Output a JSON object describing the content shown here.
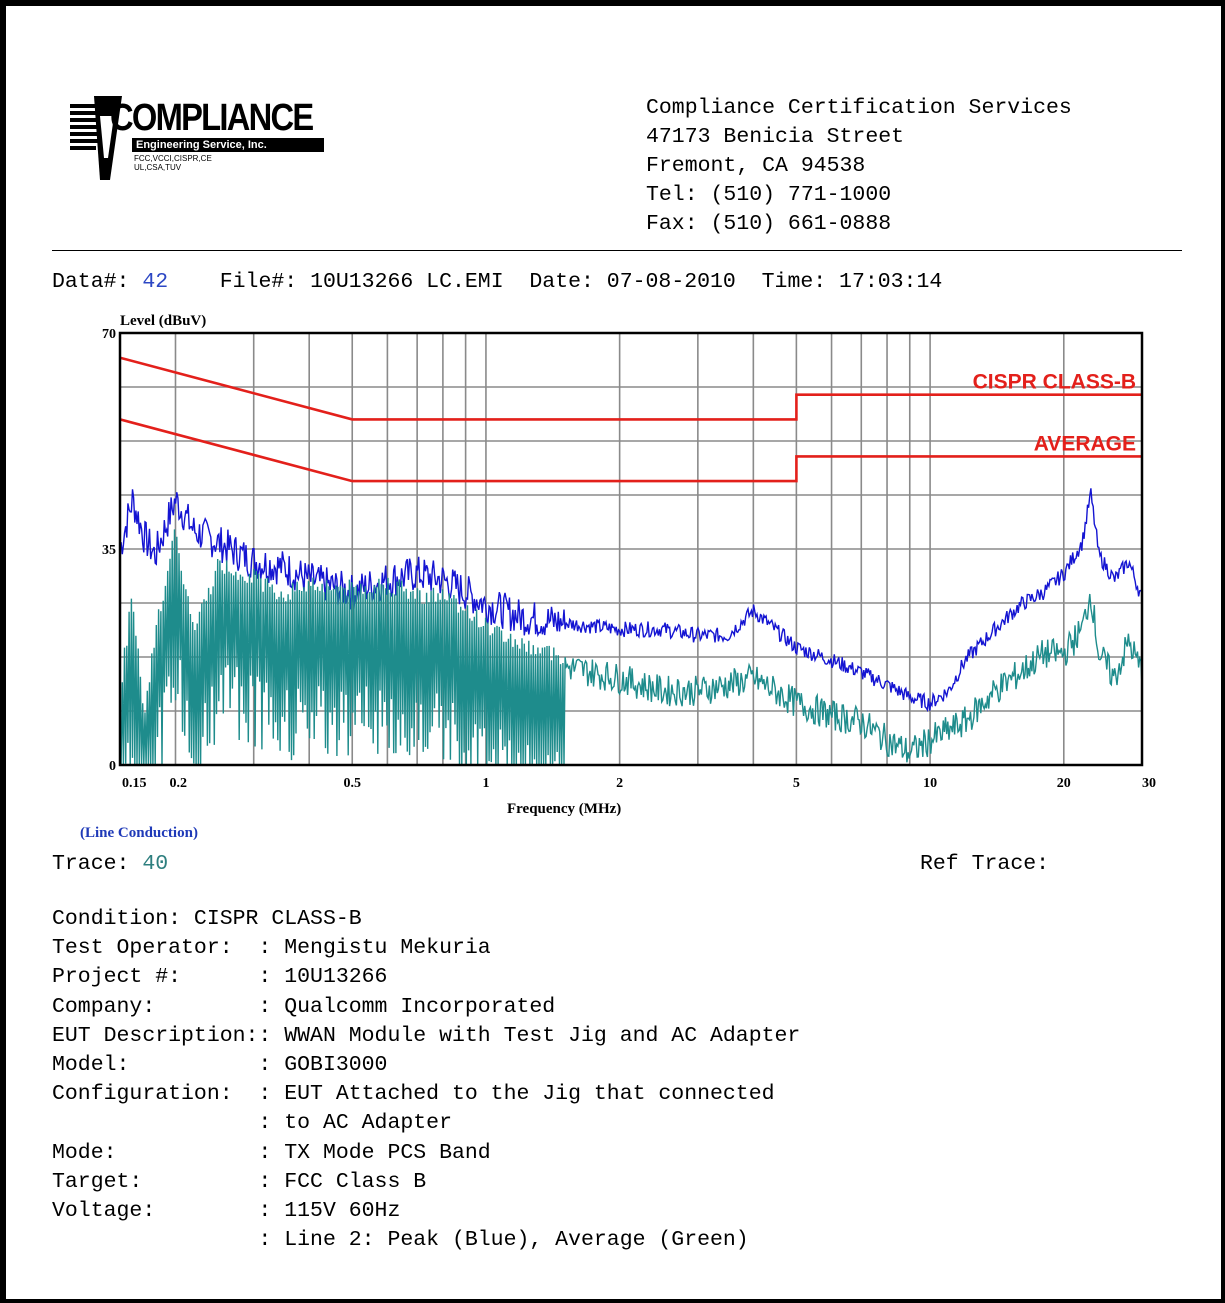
{
  "logo": {
    "name": "COMPLIANCE",
    "subtitle": "Engineering Service, Inc.",
    "small_line1": "FCC,VCCI,CISPR,CE",
    "small_line2": "UL,CSA,TUV"
  },
  "address": {
    "line1": "Compliance Certification Services",
    "line2": "47173 Benicia Street",
    "line3": "Fremont, CA 94538",
    "line4": "Tel: (510) 771-1000",
    "line5": "Fax: (510) 661-0888"
  },
  "header": {
    "data_label": "Data#: ",
    "data_value": "42",
    "rest": "    File#: 10U13266 LC.EMI  Date: 07-08-2010  Time: 17:03:14"
  },
  "chart_data": {
    "type": "line",
    "ylabel": "Level (dBuV)",
    "xlabel": "Frequency (MHz)",
    "x_scale": "log",
    "xlim": [
      0.15,
      30
    ],
    "ylim": [
      0,
      70
    ],
    "y_ticks": [
      "70",
      "35",
      "0"
    ],
    "x_ticks": [
      {
        "value": 0.15,
        "label": "0.15"
      },
      {
        "value": 0.2,
        "label": "0.2"
      },
      {
        "value": 0.5,
        "label": "0.5"
      },
      {
        "value": 1,
        "label": "1"
      },
      {
        "value": 2,
        "label": "2"
      },
      {
        "value": 5,
        "label": "5"
      },
      {
        "value": 10,
        "label": "10"
      },
      {
        "value": 20,
        "label": "20"
      },
      {
        "value": 30,
        "label": "30"
      }
    ],
    "grid": true,
    "annotation": "(Line Conduction)",
    "limit_lines": [
      {
        "name": "CISPR CLASS-B",
        "color": "#e3201b",
        "points": [
          [
            0.15,
            66
          ],
          [
            0.5,
            56
          ],
          [
            5,
            56
          ],
          [
            5,
            60
          ],
          [
            30,
            60
          ]
        ]
      },
      {
        "name": "AVERAGE",
        "color": "#e3201b",
        "points": [
          [
            0.15,
            56
          ],
          [
            0.5,
            46
          ],
          [
            5,
            46
          ],
          [
            5,
            50
          ],
          [
            30,
            50
          ]
        ]
      }
    ],
    "series": [
      {
        "color": "#1414d2",
        "values": [
          [
            0.15,
            35
          ],
          [
            0.16,
            43
          ],
          [
            0.17,
            37
          ],
          [
            0.18,
            34
          ],
          [
            0.2,
            43
          ],
          [
            0.22,
            38
          ],
          [
            0.25,
            36
          ],
          [
            0.3,
            33
          ],
          [
            0.35,
            32
          ],
          [
            0.4,
            30
          ],
          [
            0.5,
            28
          ],
          [
            0.6,
            30
          ],
          [
            0.7,
            31
          ],
          [
            0.8,
            30
          ],
          [
            0.9,
            28
          ],
          [
            1,
            26
          ],
          [
            1.2,
            24
          ],
          [
            1.5,
            23
          ],
          [
            2,
            22
          ],
          [
            2.5,
            22
          ],
          [
            3,
            21
          ],
          [
            3.5,
            21
          ],
          [
            4,
            25
          ],
          [
            5,
            19
          ],
          [
            6,
            17
          ],
          [
            7,
            15
          ],
          [
            8,
            13
          ],
          [
            9,
            11
          ],
          [
            10,
            10
          ],
          [
            11,
            12
          ],
          [
            12,
            17
          ],
          [
            14,
            22
          ],
          [
            16,
            26
          ],
          [
            18,
            28
          ],
          [
            20,
            31
          ],
          [
            22,
            36
          ],
          [
            23,
            44
          ],
          [
            24,
            34
          ],
          [
            26,
            30
          ],
          [
            28,
            33
          ],
          [
            30,
            27
          ]
        ]
      },
      {
        "color": "#1e8c8c",
        "values": [
          [
            0.15,
            10
          ],
          [
            0.16,
            27
          ],
          [
            0.17,
            5
          ],
          [
            0.18,
            20
          ],
          [
            0.2,
            36
          ],
          [
            0.22,
            20
          ],
          [
            0.25,
            31
          ],
          [
            0.3,
            29
          ],
          [
            0.35,
            26
          ],
          [
            0.4,
            28
          ],
          [
            0.5,
            27
          ],
          [
            0.6,
            28
          ],
          [
            0.7,
            26
          ],
          [
            0.8,
            26
          ],
          [
            0.9,
            24
          ],
          [
            1,
            21
          ],
          [
            1.2,
            18
          ],
          [
            1.5,
            16
          ],
          [
            2,
            14
          ],
          [
            2.5,
            12
          ],
          [
            3,
            12
          ],
          [
            3.5,
            13
          ],
          [
            4,
            14
          ],
          [
            5,
            10
          ],
          [
            6,
            8
          ],
          [
            7,
            7
          ],
          [
            8,
            4
          ],
          [
            9,
            2
          ],
          [
            10,
            4
          ],
          [
            12,
            7
          ],
          [
            14,
            12
          ],
          [
            16,
            15
          ],
          [
            18,
            18
          ],
          [
            20,
            18
          ],
          [
            22,
            22
          ],
          [
            23,
            28
          ],
          [
            24,
            18
          ],
          [
            26,
            14
          ],
          [
            28,
            20
          ],
          [
            30,
            15
          ]
        ]
      }
    ]
  },
  "trace": {
    "label": "Trace: ",
    "value": "40",
    "ref_label": "Ref Trace:"
  },
  "info_lines": [
    "Condition: CISPR CLASS-B",
    "Test Operator:  : Mengistu Mekuria",
    "Project #:      : 10U13266",
    "Company:        : Qualcomm Incorporated",
    "EUT Description:: WWAN Module with Test Jig and AC Adapter",
    "Model:          : GOBI3000",
    "Configuration:  : EUT Attached to the Jig that connected",
    "                : to AC Adapter",
    "Mode:           : TX Mode PCS Band",
    "Target:         : FCC Class B",
    "Voltage:        : 115V 60Hz",
    "                : Line 2: Peak (Blue), Average (Green)"
  ]
}
